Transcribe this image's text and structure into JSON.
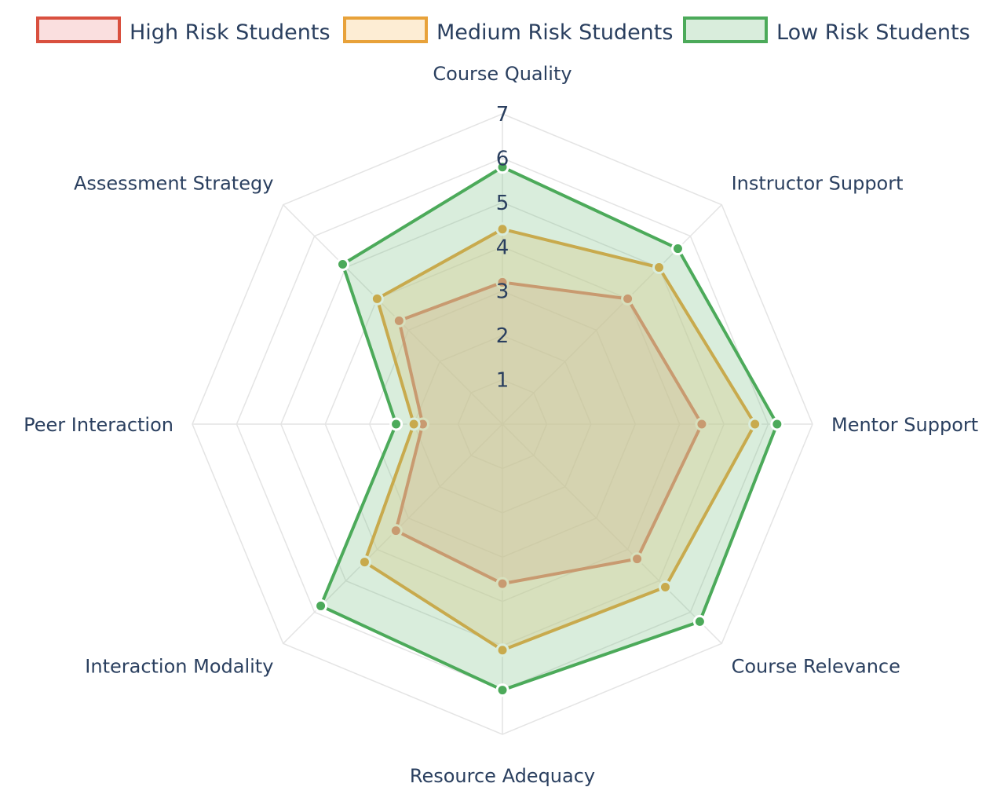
{
  "chart_data": {
    "type": "radar",
    "axes": [
      "Course Quality",
      "Instructor Support",
      "Mentor Support",
      "Course Relevance",
      "Resource Adequacy",
      "Interaction Modality",
      "Peer Interaction",
      "Assessment Strategy"
    ],
    "radial_range": [
      0,
      7
    ],
    "radial_ticks": [
      "1",
      "2",
      "3",
      "4",
      "5",
      "6",
      "7"
    ],
    "grid": true,
    "legend_position": "top",
    "series": [
      {
        "name": "High Risk Students",
        "color": "#d9503f",
        "fill": "rgba(240,150,150,0.30)",
        "values": [
          3.2,
          4.0,
          4.5,
          4.3,
          3.6,
          3.4,
          1.8,
          3.3
        ]
      },
      {
        "name": "Medium Risk Students",
        "color": "#e8a23a",
        "fill": "rgba(250,215,160,0.45)",
        "values": [
          4.4,
          5.0,
          5.7,
          5.2,
          5.1,
          4.4,
          2.0,
          4.0
        ]
      },
      {
        "name": "Low Risk Students",
        "color": "#4caa5a",
        "fill": "rgba(120,190,130,0.28)",
        "values": [
          5.8,
          5.6,
          6.2,
          6.3,
          6.0,
          5.8,
          2.4,
          5.1
        ]
      }
    ]
  }
}
